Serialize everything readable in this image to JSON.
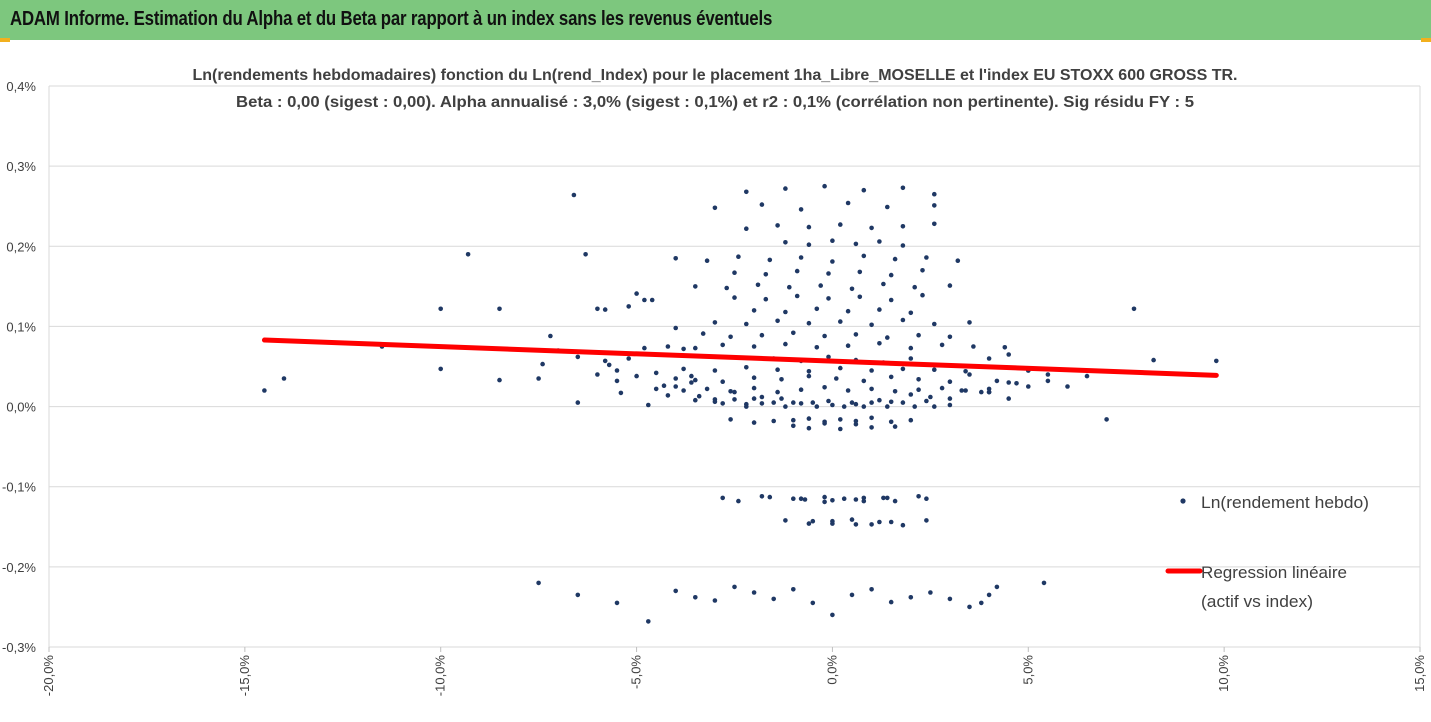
{
  "banner": {
    "title": "ADAM Informe. Estimation du Alpha et du Beta par rapport à un index sans les revenus éventuels"
  },
  "colors": {
    "banner_bg": "#7dc77e",
    "accent": "#f2b01e",
    "points": "#1f3864",
    "regression": "#ff0000",
    "grid": "#d9d9d9"
  },
  "chart_data": {
    "type": "scatter",
    "title_line1": "Ln(rendements hebdomadaires) fonction du Ln(rend_Index) pour le placement 1ha_Libre_MOSELLE et l'index EU STOXX 600 GROSS TR.",
    "title_line2": "Beta : 0,00 (sigest : 0,00). Alpha annualisé : 3,0% (sigest : 0,1%) et r2 : 0,1% (corrélation non pertinente). Sig résidu FY : 5",
    "xlabel": "",
    "ylabel": "",
    "xlim": [
      -0.2,
      0.15
    ],
    "ylim": [
      -0.003,
      0.004
    ],
    "x_ticks": [
      "-20,0%",
      "-15,0%",
      "-10,0%",
      "-5,0%",
      "0,0%",
      "5,0%",
      "10,0%",
      "15,0%"
    ],
    "y_ticks": [
      "0,4%",
      "0,3%",
      "0,2%",
      "0,1%",
      "0,0%",
      "-0,1%",
      "-0,2%",
      "-0,3%"
    ],
    "grid": "horizontal",
    "legend_position": "right",
    "series": [
      {
        "name": "Ln(rendement hebdo)",
        "kind": "scatter",
        "x": [
          -0.145,
          -0.14,
          -0.1,
          -0.1,
          -0.093,
          -0.085,
          -0.085,
          -0.075,
          -0.074,
          -0.072,
          -0.07,
          -0.066,
          -0.065,
          -0.063,
          -0.06,
          -0.058,
          -0.057,
          -0.055,
          -0.054,
          -0.052,
          -0.05,
          -0.048,
          -0.047,
          -0.046,
          -0.045,
          -0.043,
          -0.042,
          -0.04,
          -0.038,
          -0.036,
          -0.034,
          -0.03,
          -0.028,
          -0.025,
          -0.022,
          -0.02,
          -0.018,
          -0.015,
          -0.01,
          -0.005,
          0,
          0.005,
          0.01,
          0.015,
          0.02,
          0.025,
          0.03,
          0.033,
          0.035,
          0.038,
          0.04,
          0.042,
          0.045,
          0.05,
          0.055,
          0.06,
          0.065,
          0.07,
          0.077,
          0.082,
          0.098,
          -0.115,
          0.047,
          -0.022,
          -0.012,
          -0.004,
          0.003,
          0.008,
          0.014,
          0.021,
          0.026,
          -0.035,
          -0.03,
          -0.025,
          -0.018,
          -0.013,
          -0.008,
          -0.001,
          0.006,
          0.012,
          0.018,
          0.024,
          0.03,
          -0.026,
          -0.02,
          -0.015,
          -0.01,
          -0.006,
          -0.002,
          0.002,
          0.006,
          0.01,
          0.015,
          0.02,
          -0.01,
          -0.006,
          -0.002,
          0.002,
          0.006,
          0.01,
          0.016,
          -0.038,
          -0.032,
          -0.026,
          -0.02,
          -0.014,
          -0.008,
          -0.002,
          0.004,
          0.01,
          0.016,
          0.022,
          0.028,
          0.034,
          0.04,
          -0.035,
          -0.028,
          -0.02,
          -0.013,
          -0.006,
          0.001,
          0.008,
          0.015,
          0.022,
          0.03,
          -0.038,
          -0.03,
          -0.022,
          -0.014,
          -0.006,
          0.002,
          0.01,
          0.018,
          0.026,
          0.034,
          -0.015,
          -0.008,
          -0.001,
          0.006,
          0.013,
          0.02,
          -0.035,
          -0.028,
          -0.02,
          -0.012,
          -0.004,
          0.004,
          0.012,
          0.02,
          0.028,
          0.036,
          0.044,
          -0.033,
          -0.026,
          -0.018,
          -0.01,
          -0.002,
          0.006,
          0.014,
          0.022,
          0.03,
          -0.03,
          -0.022,
          -0.014,
          -0.006,
          0.002,
          0.01,
          0.018,
          0.026,
          0.035,
          -0.02,
          -0.012,
          -0.004,
          0.004,
          0.012,
          0.02,
          -0.025,
          -0.017,
          -0.009,
          -0.001,
          0.007,
          0.015,
          0.023,
          -0.035,
          -0.027,
          -0.019,
          -0.011,
          -0.003,
          0.005,
          0.013,
          0.021,
          0.03,
          -0.025,
          -0.017,
          -0.009,
          -0.001,
          0.007,
          0.015,
          0.023,
          -0.04,
          -0.032,
          -0.024,
          -0.016,
          -0.008,
          0,
          0.008,
          0.016,
          0.024,
          0.032,
          -0.012,
          -0.006,
          0,
          0.006,
          0.012,
          0.018,
          -0.022,
          -0.014,
          -0.006,
          0.002,
          0.01,
          0.018,
          0.026,
          -0.03,
          -0.018,
          -0.008,
          0.004,
          0.014,
          0.026,
          -0.022,
          -0.012,
          -0.002,
          0.008,
          0.018,
          0.026,
          -0.058,
          -0.048,
          -0.04,
          -0.052,
          -0.042,
          -0.065,
          -0.06,
          -0.055,
          -0.05,
          -0.045,
          -0.04,
          -0.036,
          0.04,
          0.045,
          0.05,
          0.055,
          0.05,
          0.045,
          0.04,
          -0.028,
          -0.024,
          -0.016,
          -0.008,
          0,
          0.008,
          0.016,
          0.024,
          -0.012,
          -0.006,
          0,
          0.006,
          0.012,
          0.018,
          0.024,
          -0.018,
          -0.01,
          -0.002,
          0.006,
          0.014,
          0.022,
          -0.007,
          -0.002,
          0.003,
          0.008,
          0.013,
          -0.005,
          0,
          0.005,
          0.01,
          0.015,
          -0.075,
          -0.065,
          -0.055,
          -0.047,
          -0.04,
          -0.035,
          -0.03,
          -0.025,
          -0.02,
          -0.015,
          -0.01,
          -0.005,
          0,
          0.005,
          0.01,
          0.015,
          0.02,
          0.025,
          0.03,
          0.035,
          0.038,
          0.04,
          0.042,
          0.054
        ],
        "y": [
          0.0002,
          0.00035,
          0.00122,
          0.00047,
          0.0019,
          0.00122,
          0.00033,
          0.00035,
          0.00053,
          0.00088,
          0.0007,
          0.00264,
          5e-05,
          0.0019,
          0.00122,
          0.00057,
          0.00052,
          0.00032,
          0.00017,
          0.00125,
          0.00141,
          0.00073,
          2e-05,
          0.00133,
          0.00022,
          0.00026,
          0.00014,
          0.00025,
          0.00072,
          0.00038,
          0.00013,
          9e-05,
          4e-05,
          0.00018,
          3e-05,
          0.0001,
          0.00012,
          5e-05,
          5e-05,
          5e-05,
          2e-05,
          5e-05,
          5e-05,
          6e-05,
          0.00015,
          0.00012,
          0.0001,
          0.0002,
          0.0004,
          0.00018,
          0.00022,
          0.00032,
          0.0001,
          0.00045,
          0.00032,
          0.00025,
          0.00038,
          -0.00016,
          0.00122,
          0.00058,
          0.00057,
          0.00075,
          0.00029,
          0,
          0,
          0,
          0,
          0,
          0,
          0,
          0,
          8e-05,
          6e-05,
          9e-05,
          4e-05,
          0.0001,
          4e-05,
          7e-05,
          3e-05,
          8e-05,
          5e-05,
          7e-05,
          2e-05,
          -0.00016,
          -0.0002,
          -0.00018,
          -0.00017,
          -0.00015,
          -0.00019,
          -0.00016,
          -0.00018,
          -0.00014,
          -0.00019,
          -0.00017,
          -0.00024,
          -0.00027,
          -0.00021,
          -0.00028,
          -0.00022,
          -0.00026,
          -0.00025,
          0.0002,
          0.00022,
          0.00019,
          0.00023,
          0.00018,
          0.00021,
          0.00024,
          0.0002,
          0.00022,
          0.00019,
          0.00021,
          0.00023,
          0.0002,
          0.00018,
          0.00033,
          0.00031,
          0.00036,
          0.00034,
          0.00038,
          0.00035,
          0.00032,
          0.00037,
          0.00034,
          0.00031,
          0.00047,
          0.00045,
          0.00049,
          0.00046,
          0.00044,
          0.00048,
          0.00045,
          0.00047,
          0.00046,
          0.00044,
          0.0006,
          0.00057,
          0.00062,
          0.00058,
          0.00055,
          0.0006,
          0.00073,
          0.00077,
          0.00075,
          0.00078,
          0.00074,
          0.00076,
          0.00079,
          0.00073,
          0.00077,
          0.00075,
          0.00074,
          0.00091,
          0.00087,
          0.00089,
          0.00092,
          0.00088,
          0.0009,
          0.00086,
          0.00089,
          0.00087,
          0.00105,
          0.00103,
          0.00107,
          0.00104,
          0.00106,
          0.00102,
          0.00108,
          0.00103,
          0.00105,
          0.0012,
          0.00118,
          0.00122,
          0.00119,
          0.00121,
          0.00117,
          0.00136,
          0.00134,
          0.00138,
          0.00135,
          0.00137,
          0.00133,
          0.00139,
          0.0015,
          0.00148,
          0.00152,
          0.00149,
          0.00151,
          0.00147,
          0.00153,
          0.00149,
          0.00151,
          0.00167,
          0.00165,
          0.00169,
          0.00166,
          0.00168,
          0.00164,
          0.0017,
          0.00185,
          0.00182,
          0.00187,
          0.00183,
          0.00186,
          0.00181,
          0.00188,
          0.00184,
          0.00186,
          0.00182,
          0.00205,
          0.00202,
          0.00207,
          0.00203,
          0.00206,
          0.00201,
          0.00222,
          0.00226,
          0.00224,
          0.00227,
          0.00223,
          0.00225,
          0.00228,
          0.00248,
          0.00252,
          0.00246,
          0.00254,
          0.00249,
          0.00251,
          0.00268,
          0.00272,
          0.00275,
          0.0027,
          0.00273,
          0.00265,
          0.00121,
          0.00133,
          0.00098,
          0.0006,
          0.00075,
          0.00062,
          0.0004,
          0.00045,
          0.00038,
          0.00042,
          0.00035,
          0.0003,
          0.0006,
          0.00065,
          0.00045,
          0.0004,
          0.00025,
          0.0003,
          0.00018,
          -0.00114,
          -0.00118,
          -0.00113,
          -0.00115,
          -0.00117,
          -0.00114,
          -0.00118,
          -0.00115,
          -0.00142,
          -0.00146,
          -0.00143,
          -0.00147,
          -0.00144,
          -0.00148,
          -0.00142,
          -0.00112,
          -0.00115,
          -0.00113,
          -0.00116,
          -0.00114,
          -0.00112,
          -0.00116,
          -0.00119,
          -0.00115,
          -0.00118,
          -0.00114,
          -0.00143,
          -0.00146,
          -0.00141,
          -0.00147,
          -0.00144,
          -0.0022,
          -0.00235,
          -0.00245,
          -0.00268,
          -0.0023,
          -0.00238,
          -0.00242,
          -0.00225,
          -0.00232,
          -0.0024,
          -0.00228,
          -0.00245,
          -0.0026,
          -0.00235,
          -0.00228,
          -0.00244,
          -0.00238,
          -0.00232,
          -0.0024,
          -0.0025,
          -0.00245,
          -0.00235,
          -0.00225,
          -0.0022
        ]
      },
      {
        "name": "Regression linéaire (actif vs index)",
        "kind": "line",
        "x": [
          -0.145,
          0.098
        ],
        "y": [
          0.00083,
          0.00039
        ]
      }
    ],
    "legend_entries": [
      "Ln(rendement hebdo)",
      "Regression linéaire",
      "(actif vs index)"
    ]
  }
}
